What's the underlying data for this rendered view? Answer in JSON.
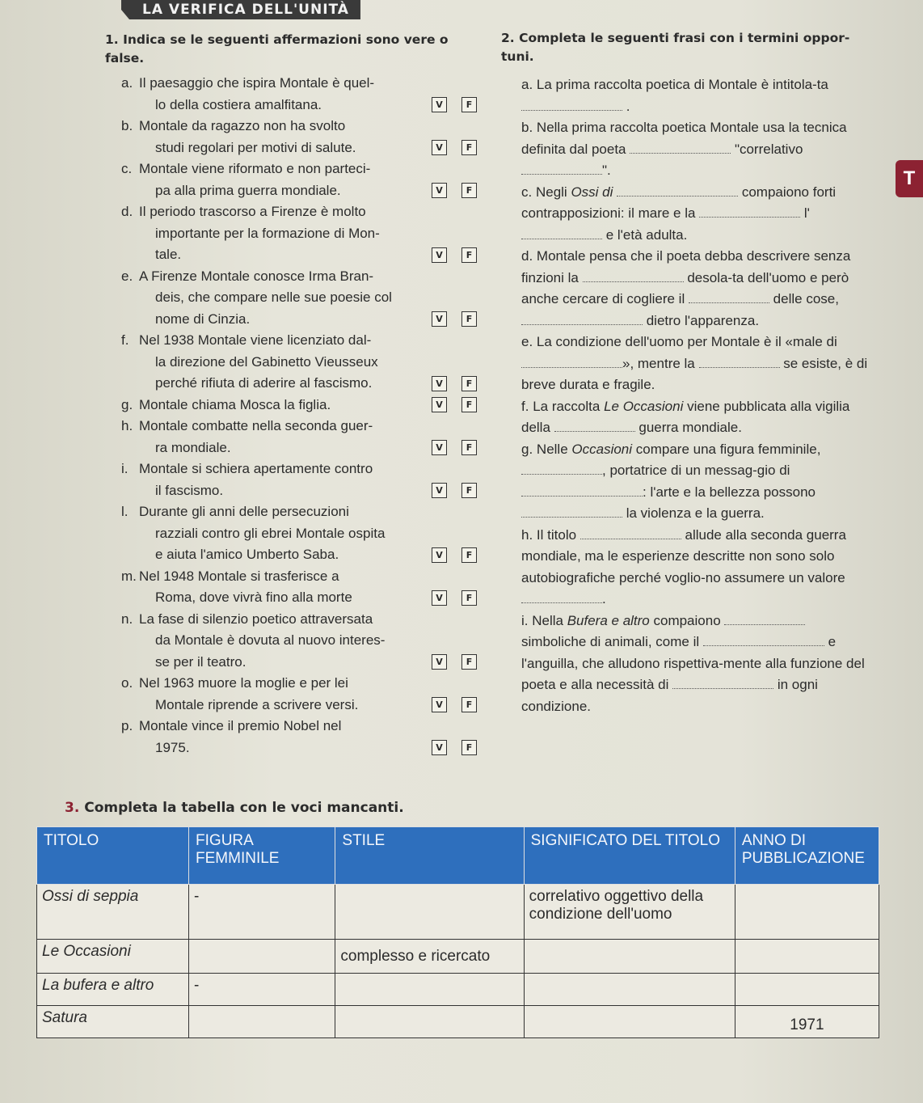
{
  "banner": "LA VERIFICA DELL'UNITÀ",
  "exercise1": {
    "number": "1.",
    "title": "Indica se le seguenti affermazioni sono vere o false.",
    "true_label": "V",
    "false_label": "F",
    "items": [
      {
        "letter": "a.",
        "lines": [
          "Il paesaggio che ispira Montale è quel-",
          "lo della costiera amalfitana."
        ]
      },
      {
        "letter": "b.",
        "lines": [
          "Montale da ragazzo non ha svolto",
          "studi regolari per motivi di salute."
        ]
      },
      {
        "letter": "c.",
        "lines": [
          "Montale viene riformato e non parteci-",
          "pa alla prima guerra mondiale."
        ]
      },
      {
        "letter": "d.",
        "lines": [
          "Il periodo trascorso a Firenze è molto",
          "importante per la formazione di Mon-",
          "tale."
        ]
      },
      {
        "letter": "e.",
        "lines": [
          "A Firenze Montale conosce Irma Bran-",
          "deis, che compare nelle sue poesie col",
          "nome di Cinzia."
        ]
      },
      {
        "letter": "f.",
        "lines": [
          "Nel 1938 Montale viene licenziato dal-",
          "la direzione del Gabinetto Vieusseux",
          "perché rifiuta di aderire al fascismo."
        ]
      },
      {
        "letter": "g.",
        "lines": [
          "Montale chiama Mosca la figlia."
        ]
      },
      {
        "letter": "h.",
        "lines": [
          "Montale combatte nella seconda guer-",
          "ra mondiale."
        ]
      },
      {
        "letter": "i.",
        "lines": [
          "Montale si schiera apertamente contro",
          "il fascismo."
        ]
      },
      {
        "letter": "l.",
        "lines": [
          "Durante gli anni delle persecuzioni",
          "razziali contro gli ebrei Montale ospita",
          "e aiuta l'amico Umberto Saba."
        ]
      },
      {
        "letter": "m.",
        "lines": [
          "Nel 1948 Montale si trasferisce a",
          "Roma, dove vivrà fino alla morte"
        ]
      },
      {
        "letter": "n.",
        "lines": [
          "La fase di silenzio poetico attraversata",
          "da Montale è dovuta al nuovo interes-",
          "se per il teatro."
        ]
      },
      {
        "letter": "o.",
        "lines": [
          "Nel 1963 muore la moglie e per lei",
          "Montale riprende a scrivere versi."
        ]
      },
      {
        "letter": "p.",
        "lines": [
          "Montale vince il premio Nobel nel",
          "1975."
        ]
      }
    ]
  },
  "exercise2": {
    "number": "2.",
    "title": "Completa le seguenti frasi con i termini oppor-tuni.",
    "items": [
      {
        "letter": "a.",
        "segments": [
          "La prima raccolta poetica di Montale è intitola-ta ",
          "_",
          " ."
        ]
      },
      {
        "letter": "b.",
        "segments": [
          "Nella prima raccolta poetica Montale usa la tecnica definita dal poeta ",
          "_",
          " \"correlativo ",
          "_",
          "\"."
        ]
      },
      {
        "letter": "c.",
        "segments": [
          "Negli ",
          "Ossi di ",
          "_",
          " compaiono forti contrapposizioni: il mare e la ",
          "_",
          " l'",
          "_",
          " e l'età adulta."
        ]
      },
      {
        "letter": "d.",
        "segments": [
          "Montale pensa che il poeta debba descrivere senza finzioni la ",
          "_",
          " desola-ta dell'uomo e però anche cercare di cogliere il ",
          "_",
          " delle cose, ",
          "_",
          " dietro l'apparenza."
        ]
      },
      {
        "letter": "e.",
        "segments": [
          "La condizione dell'uomo per Montale è il «male di ",
          "_",
          "», mentre la ",
          "_",
          " se esiste, è di breve durata e fragile."
        ]
      },
      {
        "letter": "f.",
        "segments": [
          "La raccolta ",
          "Le Occasioni",
          " viene pubblicata alla vigilia della ",
          "_",
          " guerra mondiale."
        ]
      },
      {
        "letter": "g.",
        "segments": [
          "Nelle ",
          "Occasioni",
          " compare una figura femminile, ",
          "_",
          ", portatrice di un messag-gio di ",
          "_",
          ": l'arte e la bellezza possono ",
          "_",
          " la violenza e la guerra."
        ]
      },
      {
        "letter": "h.",
        "segments": [
          "Il titolo ",
          "_",
          " allude alla seconda guerra mondiale, ma le esperienze descritte non sono solo autobiografiche perché voglio-no assumere un valore ",
          "_",
          "."
        ]
      },
      {
        "letter": "i.",
        "segments": [
          "Nella ",
          "Bufera e altro",
          " compaiono ",
          "_",
          " simboliche di animali, come il ",
          "_",
          " e l'anguilla, che alludono rispettiva-mente alla funzione del poeta e alla necessità di ",
          "_",
          " in ogni condizione."
        ]
      }
    ]
  },
  "side_tab": "T",
  "exercise3": {
    "number": "3.",
    "title": "Completa la tabella con le voci mancanti.",
    "table": {
      "headers": [
        "TITOLO",
        "FIGURA FEMMINILE",
        "STILE",
        "SIGNIFICATO DEL TITOLO",
        "ANNO DI PUBBLICAZIONE"
      ],
      "rows": [
        [
          "Ossi di seppia",
          "-",
          "",
          "correlativo oggettivo della condizione dell'uomo",
          ""
        ],
        [
          "Le Occasioni",
          "",
          "complesso e ricercato",
          "",
          ""
        ],
        [
          "La bufera e altro",
          "-",
          "",
          "",
          ""
        ],
        [
          "Satura",
          "",
          "",
          "",
          "1971"
        ]
      ]
    }
  },
  "colors": {
    "table_header": "#2e6fbd",
    "banner": "#3a3a3a",
    "side_tab": "#8c2232",
    "number": "#8c2232"
  }
}
